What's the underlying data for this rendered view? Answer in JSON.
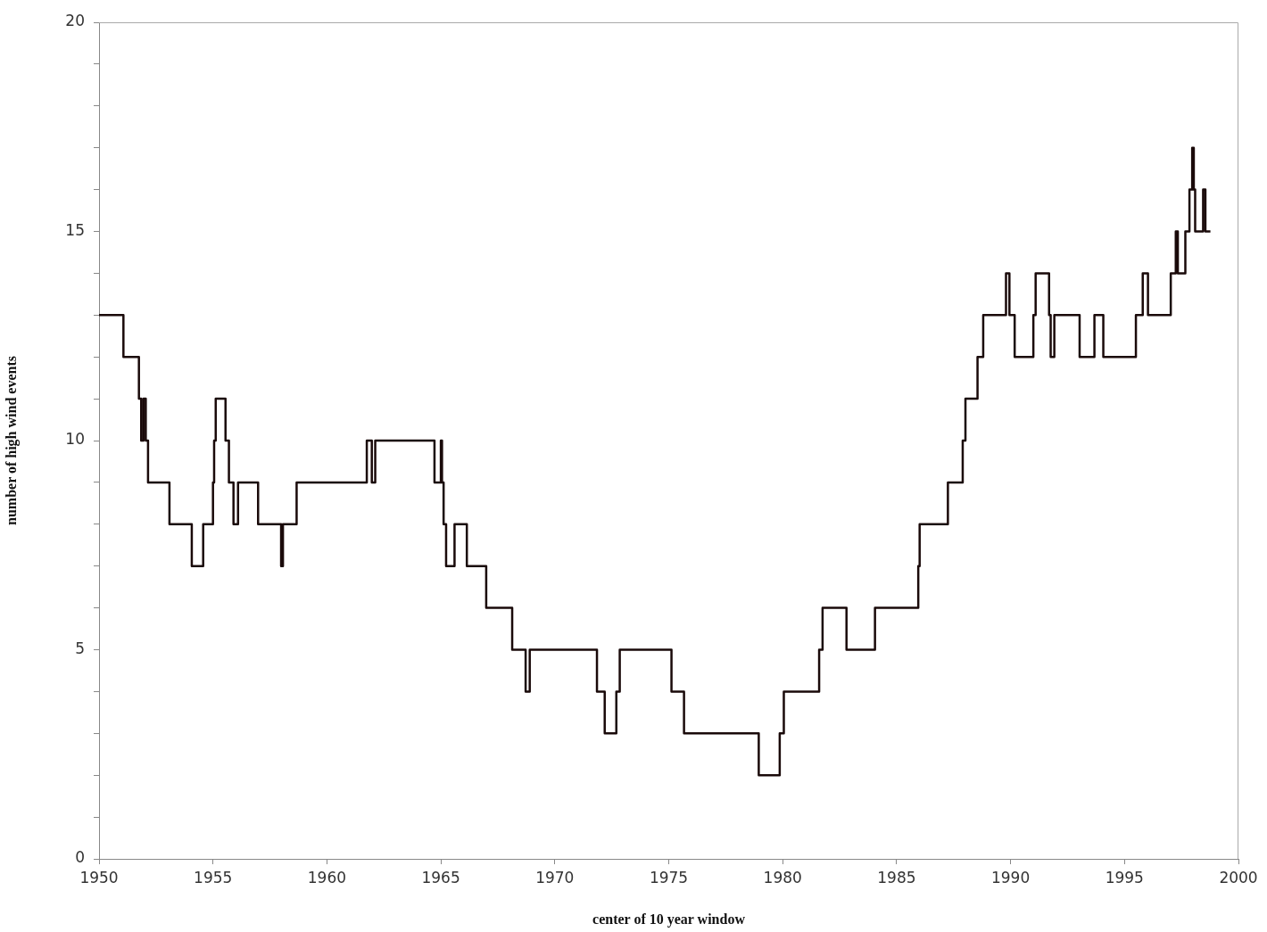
{
  "chart_data": {
    "type": "step",
    "xlabel": "center of 10 year window",
    "ylabel": "number of high wind events",
    "color": "#1a0a0a",
    "marker": "none",
    "line_style": "solid",
    "legend": false,
    "x": [
      1950,
      1951.07,
      1951.75,
      1951.85,
      1951.95,
      1952.05,
      1952.15,
      1953.09,
      1954.07,
      1954.57,
      1955.0,
      1955.05,
      1955.12,
      1955.55,
      1955.7,
      1955.9,
      1956.1,
      1956.98,
      1957.99,
      1958.07,
      1958.67,
      1961.75,
      1961.97,
      1962.12,
      1964.72,
      1965.0,
      1965.05,
      1965.12,
      1965.23,
      1965.6,
      1966.14,
      1966.99,
      1968.13,
      1968.72,
      1968.9,
      1971.85,
      1972.19,
      1972.7,
      1972.85,
      1975.12,
      1975.67,
      1978.95,
      1979.87,
      1980.05,
      1981.6,
      1981.75,
      1982.8,
      1984.05,
      1985.95,
      1986.01,
      1987.25,
      1987.9,
      1988.02,
      1988.55,
      1988.8,
      1989.8,
      1989.95,
      1990.18,
      1991.0,
      1991.1,
      1991.69,
      1991.76,
      1991.92,
      1993.03,
      1993.68,
      1994.07,
      1995.5,
      1995.8,
      1996.03,
      1997.03,
      1997.25,
      1997.34,
      1997.67,
      1997.85,
      1997.97,
      1998.04,
      1998.1,
      1998.45,
      1998.55,
      1998.77
    ],
    "values": [
      13,
      12,
      11,
      10,
      11,
      10,
      9,
      8,
      7,
      8,
      9,
      10,
      11,
      10,
      9,
      8,
      9,
      8,
      7,
      8,
      9,
      10,
      9,
      10,
      9,
      10,
      9,
      8,
      7,
      8,
      7,
      6,
      5,
      4,
      5,
      4,
      3,
      4,
      5,
      4,
      3,
      2,
      3,
      4,
      5,
      6,
      5,
      6,
      7,
      8,
      9,
      10,
      11,
      12,
      13,
      14,
      13,
      12,
      13,
      14,
      13,
      12,
      13,
      12,
      13,
      12,
      13,
      14,
      13,
      14,
      15,
      14,
      15,
      16,
      17,
      16,
      15,
      16,
      15,
      15
    ],
    "xlim": [
      1950,
      2000
    ],
    "xticks": [
      1950,
      1955,
      1960,
      1965,
      1970,
      1975,
      1980,
      1985,
      1990,
      1995,
      2000
    ],
    "ylim": [
      0,
      20
    ],
    "yticks": [
      0,
      {
        "value": 1,
        "label": null
      },
      {
        "value": 2,
        "label": null
      },
      {
        "value": 3,
        "label": null
      },
      {
        "value": 4,
        "label": null
      },
      5,
      {
        "value": 6,
        "label": null
      },
      {
        "value": 7,
        "label": null
      },
      {
        "value": 8,
        "label": null
      },
      {
        "value": 9,
        "label": null
      },
      10,
      {
        "value": 11,
        "label": null
      },
      {
        "value": 12,
        "label": null
      },
      {
        "value": 13,
        "label": null
      },
      {
        "value": 14,
        "label": null
      },
      15,
      {
        "value": 16,
        "label": null
      },
      {
        "value": 17,
        "label": null
      },
      {
        "value": 18,
        "label": null
      },
      {
        "value": 19,
        "label": null
      },
      20
    ]
  }
}
